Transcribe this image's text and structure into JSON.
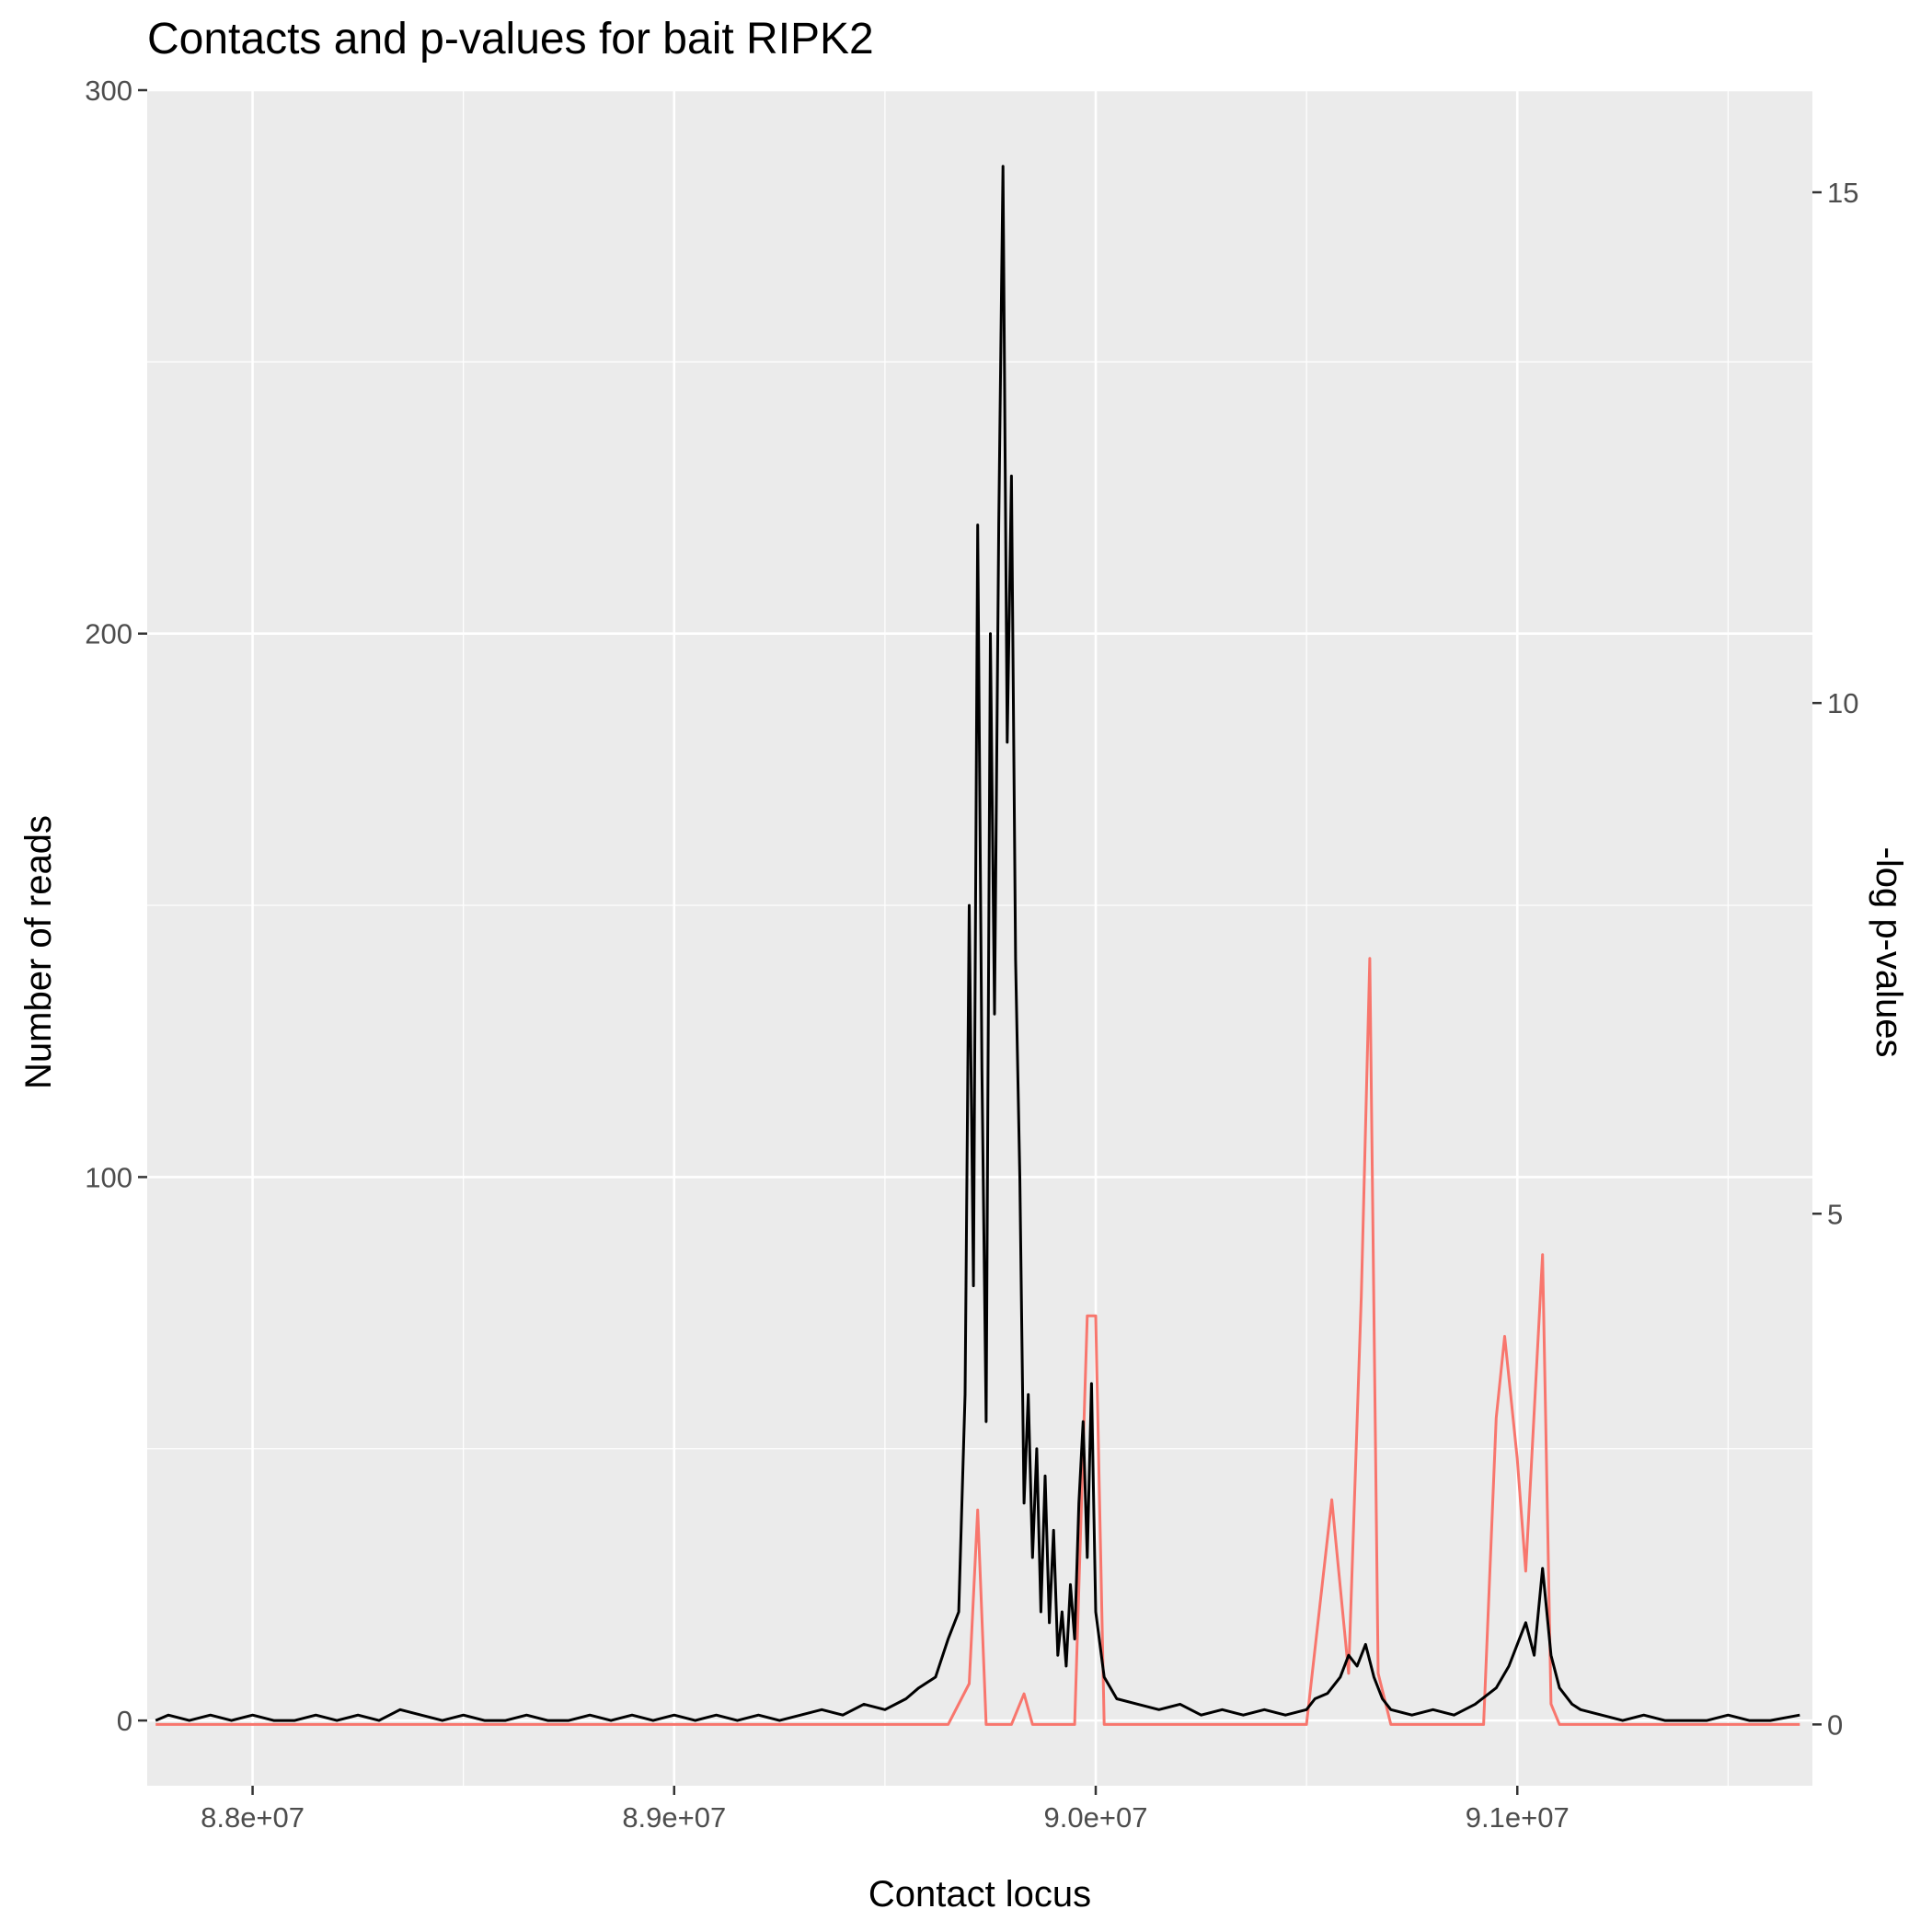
{
  "chart_data": {
    "type": "line",
    "title": "Contacts and p-values for bait RIPK2",
    "xlabel": "Contact locus",
    "ylabel": "Number of reads",
    "y2label": "-log p-values",
    "xlim": [
      87750000,
      91700000
    ],
    "ylim": [
      -12,
      300
    ],
    "y2lim": [
      -0.6,
      16
    ],
    "x_ticks": [
      88000000,
      89000000,
      90000000,
      91000000
    ],
    "x_tick_labels": [
      "8.8e+07",
      "8.9e+07",
      "9.0e+07",
      "9.1e+07"
    ],
    "y_ticks": [
      0,
      100,
      200,
      300
    ],
    "y_tick_labels": [
      "0",
      "100",
      "200",
      "300"
    ],
    "y2_ticks": [
      0,
      5,
      10,
      15
    ],
    "y2_tick_labels": [
      "0",
      "5",
      "10",
      "15"
    ],
    "grid": true,
    "series": [
      {
        "color": "#000000",
        "axis": "left",
        "points": [
          [
            87770000,
            0
          ],
          [
            87800000,
            1
          ],
          [
            87850000,
            0
          ],
          [
            87900000,
            1
          ],
          [
            87950000,
            0
          ],
          [
            88000000,
            1
          ],
          [
            88050000,
            0
          ],
          [
            88100000,
            0
          ],
          [
            88150000,
            1
          ],
          [
            88200000,
            0
          ],
          [
            88250000,
            1
          ],
          [
            88300000,
            0
          ],
          [
            88350000,
            2
          ],
          [
            88400000,
            1
          ],
          [
            88450000,
            0
          ],
          [
            88500000,
            1
          ],
          [
            88550000,
            0
          ],
          [
            88600000,
            0
          ],
          [
            88650000,
            1
          ],
          [
            88700000,
            0
          ],
          [
            88750000,
            0
          ],
          [
            88800000,
            1
          ],
          [
            88850000,
            0
          ],
          [
            88900000,
            1
          ],
          [
            88950000,
            0
          ],
          [
            89000000,
            1
          ],
          [
            89050000,
            0
          ],
          [
            89100000,
            1
          ],
          [
            89150000,
            0
          ],
          [
            89200000,
            1
          ],
          [
            89250000,
            0
          ],
          [
            89300000,
            1
          ],
          [
            89350000,
            2
          ],
          [
            89400000,
            1
          ],
          [
            89450000,
            3
          ],
          [
            89500000,
            2
          ],
          [
            89550000,
            4
          ],
          [
            89580000,
            6
          ],
          [
            89620000,
            8
          ],
          [
            89650000,
            15
          ],
          [
            89675000,
            20
          ],
          [
            89690000,
            60
          ],
          [
            89700000,
            150
          ],
          [
            89710000,
            80
          ],
          [
            89720000,
            220
          ],
          [
            89730000,
            120
          ],
          [
            89740000,
            55
          ],
          [
            89750000,
            200
          ],
          [
            89760000,
            130
          ],
          [
            89770000,
            220
          ],
          [
            89780000,
            286
          ],
          [
            89790000,
            180
          ],
          [
            89800000,
            229
          ],
          [
            89810000,
            140
          ],
          [
            89820000,
            100
          ],
          [
            89830000,
            40
          ],
          [
            89840000,
            60
          ],
          [
            89850000,
            30
          ],
          [
            89860000,
            50
          ],
          [
            89870000,
            20
          ],
          [
            89880000,
            45
          ],
          [
            89890000,
            18
          ],
          [
            89900000,
            35
          ],
          [
            89910000,
            12
          ],
          [
            89920000,
            20
          ],
          [
            89930000,
            10
          ],
          [
            89940000,
            25
          ],
          [
            89950000,
            15
          ],
          [
            89960000,
            40
          ],
          [
            89970000,
            55
          ],
          [
            89980000,
            30
          ],
          [
            89990000,
            62
          ],
          [
            90000000,
            20
          ],
          [
            90020000,
            8
          ],
          [
            90050000,
            4
          ],
          [
            90100000,
            3
          ],
          [
            90150000,
            2
          ],
          [
            90200000,
            3
          ],
          [
            90250000,
            1
          ],
          [
            90300000,
            2
          ],
          [
            90350000,
            1
          ],
          [
            90400000,
            2
          ],
          [
            90450000,
            1
          ],
          [
            90500000,
            2
          ],
          [
            90520000,
            4
          ],
          [
            90550000,
            5
          ],
          [
            90580000,
            8
          ],
          [
            90600000,
            12
          ],
          [
            90620000,
            10
          ],
          [
            90640000,
            14
          ],
          [
            90660000,
            8
          ],
          [
            90680000,
            4
          ],
          [
            90700000,
            2
          ],
          [
            90750000,
            1
          ],
          [
            90800000,
            2
          ],
          [
            90850000,
            1
          ],
          [
            90900000,
            3
          ],
          [
            90950000,
            6
          ],
          [
            90980000,
            10
          ],
          [
            91000000,
            14
          ],
          [
            91020000,
            18
          ],
          [
            91040000,
            12
          ],
          [
            91060000,
            28
          ],
          [
            91080000,
            12
          ],
          [
            91100000,
            6
          ],
          [
            91130000,
            3
          ],
          [
            91150000,
            2
          ],
          [
            91200000,
            1
          ],
          [
            91250000,
            0
          ],
          [
            91300000,
            1
          ],
          [
            91350000,
            0
          ],
          [
            91400000,
            0
          ],
          [
            91450000,
            0
          ],
          [
            91500000,
            1
          ],
          [
            91550000,
            0
          ],
          [
            91600000,
            0
          ],
          [
            91670000,
            1
          ]
        ]
      },
      {
        "color": "#f8766d",
        "axis": "right",
        "points": [
          [
            87770000,
            0
          ],
          [
            89650000,
            0
          ],
          [
            89700000,
            0.4
          ],
          [
            89720000,
            2.1
          ],
          [
            89740000,
            0
          ],
          [
            89800000,
            0
          ],
          [
            89830000,
            0.3
          ],
          [
            89850000,
            0
          ],
          [
            89950000,
            0
          ],
          [
            89980000,
            4.0
          ],
          [
            90000000,
            4.0
          ],
          [
            90020000,
            0
          ],
          [
            90500000,
            0
          ],
          [
            90560000,
            2.2
          ],
          [
            90600000,
            0.5
          ],
          [
            90630000,
            4.2
          ],
          [
            90650000,
            7.5
          ],
          [
            90670000,
            0.5
          ],
          [
            90700000,
            0
          ],
          [
            90920000,
            0
          ],
          [
            90950000,
            3.0
          ],
          [
            90970000,
            3.8
          ],
          [
            91000000,
            2.6
          ],
          [
            91020000,
            1.5
          ],
          [
            91060000,
            4.6
          ],
          [
            91080000,
            0.2
          ],
          [
            91100000,
            0
          ],
          [
            91670000,
            0
          ]
        ]
      }
    ]
  }
}
